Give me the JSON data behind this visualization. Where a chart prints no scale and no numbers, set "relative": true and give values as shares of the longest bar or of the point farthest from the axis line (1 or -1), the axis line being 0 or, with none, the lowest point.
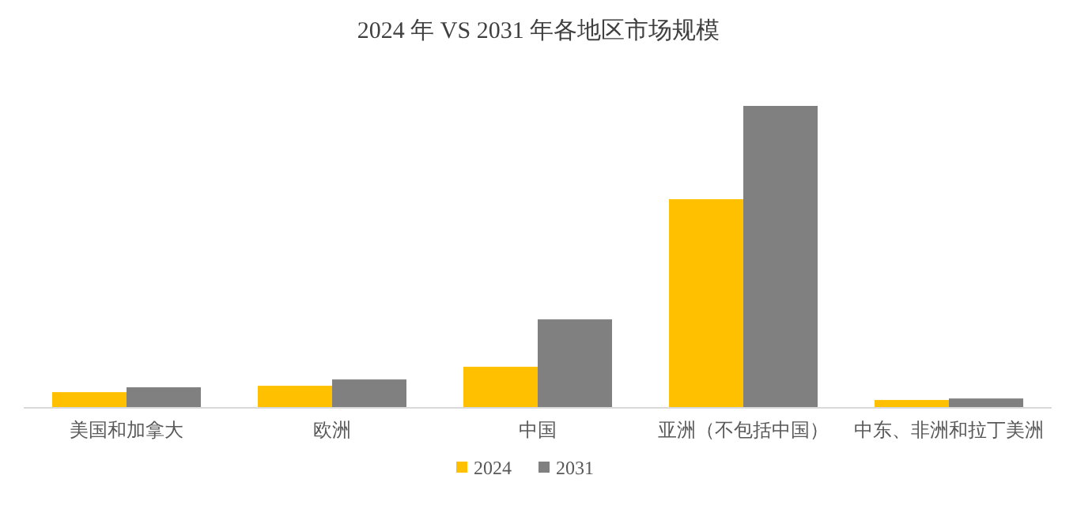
{
  "chart_data": {
    "type": "bar",
    "title": "2024 年 VS 2031 年各地区市场规模",
    "relative": true,
    "legend": "bottom",
    "categories": [
      "美国和加拿大",
      "欧洲",
      "中国",
      "亚洲（不包括中国）",
      "中东、非洲和拉丁美洲"
    ],
    "series": [
      {
        "name": "2024",
        "color": "#ffc000",
        "values": [
          0.052,
          0.073,
          0.136,
          0.691,
          0.026
        ]
      },
      {
        "name": "2031",
        "color": "#808080",
        "values": [
          0.068,
          0.094,
          0.293,
          1,
          0.031
        ]
      }
    ]
  }
}
